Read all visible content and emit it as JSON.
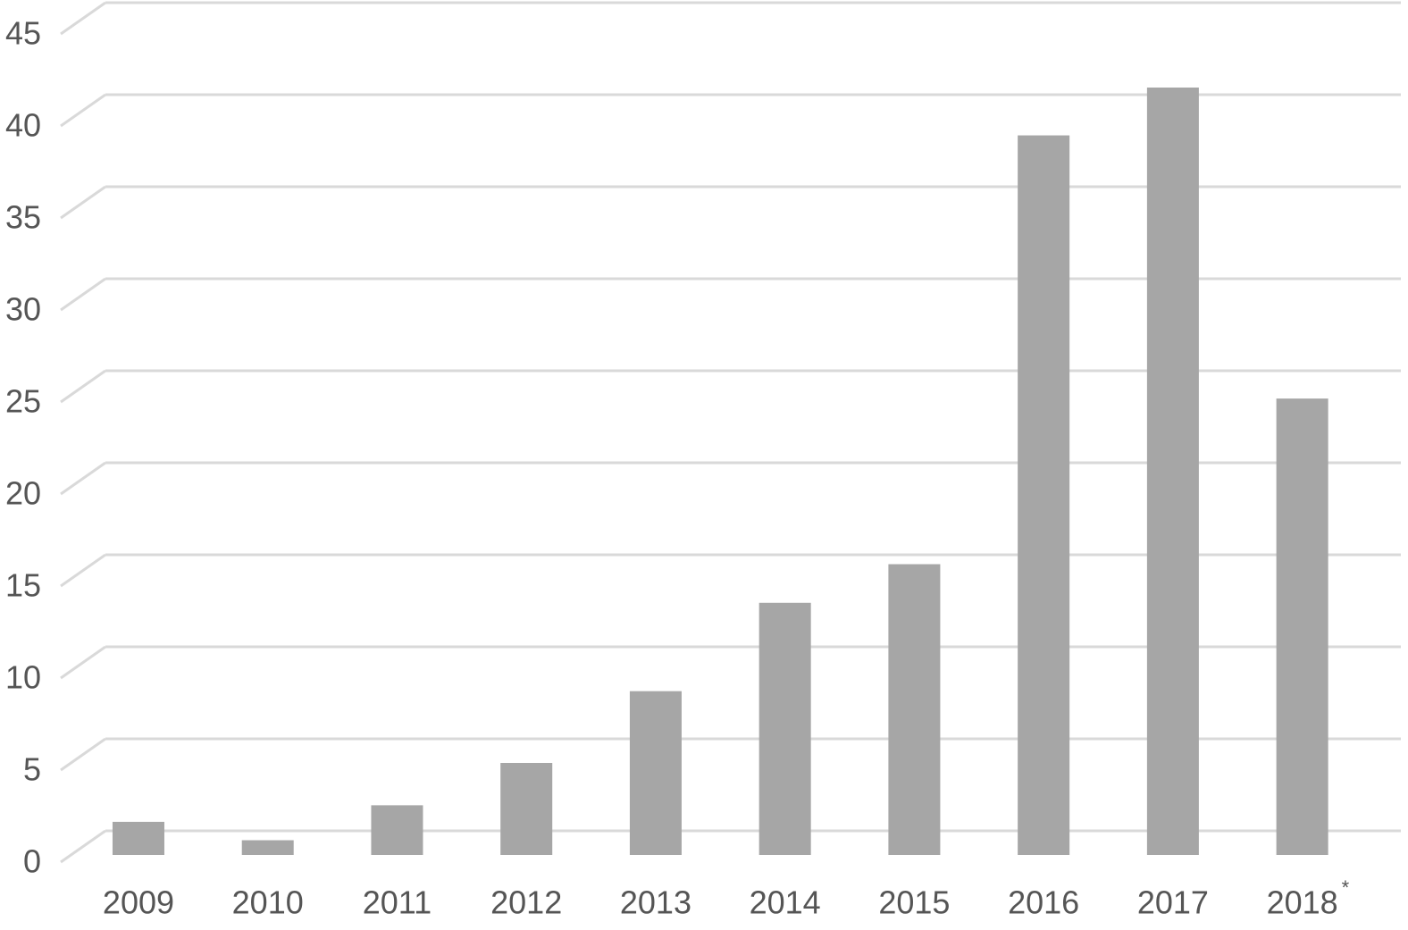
{
  "chart_data": {
    "type": "bar",
    "categories": [
      "2009",
      "2010",
      "2011",
      "2012",
      "2013",
      "2014",
      "2015",
      "2016",
      "2017",
      "2018"
    ],
    "values": [
      1.8,
      0.8,
      2.7,
      5.0,
      8.9,
      13.7,
      15.8,
      39.1,
      41.7,
      24.8
    ],
    "color": "#a6a6a6",
    "annotation": "*",
    "ylim": [
      0,
      45
    ],
    "yticks": [
      0,
      5,
      10,
      15,
      20,
      25,
      30,
      35,
      40,
      45
    ],
    "grid": true
  }
}
